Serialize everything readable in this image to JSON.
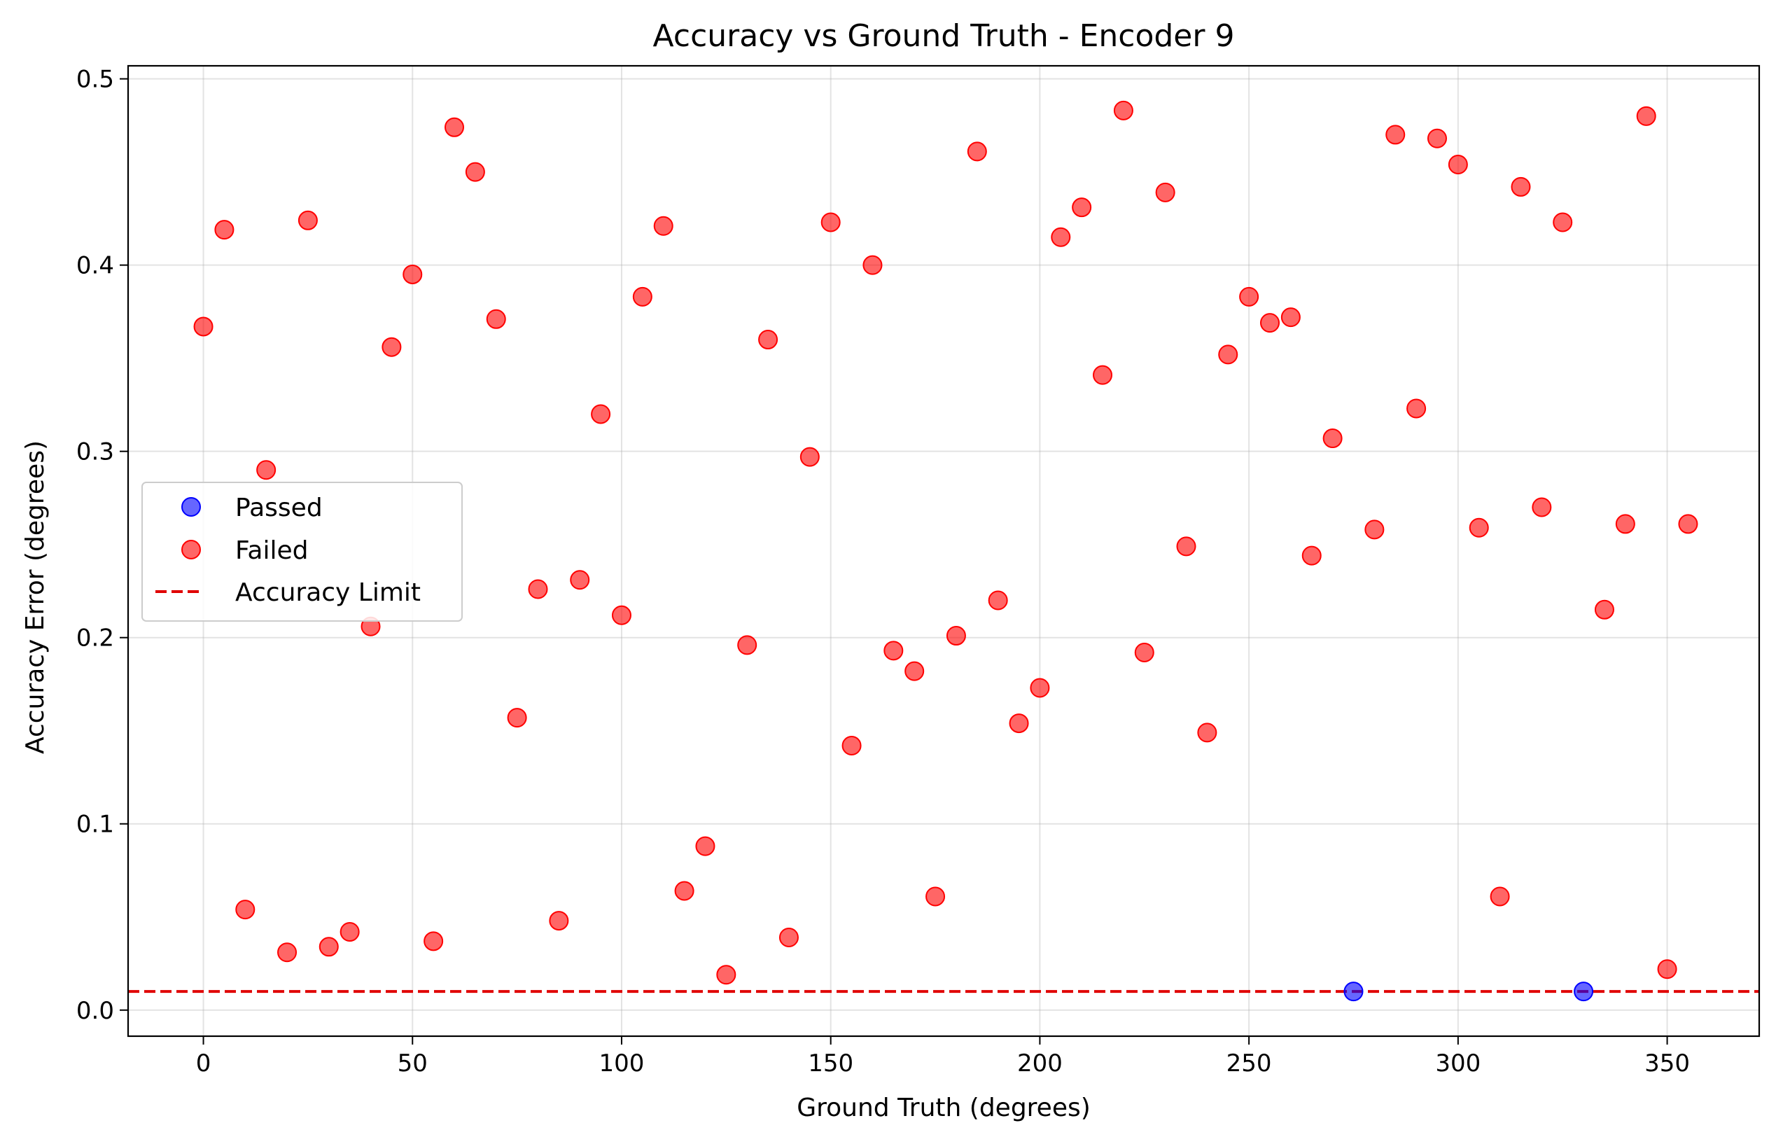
{
  "chart_data": {
    "type": "scatter",
    "title": "Accuracy vs Ground Truth - Encoder 9",
    "xlabel": "Ground Truth (degrees)",
    "ylabel": "Accuracy Error (degrees)",
    "xlim": [
      -18,
      372
    ],
    "ylim": [
      -0.014,
      0.507
    ],
    "xticks": [
      0,
      50,
      100,
      150,
      200,
      250,
      300,
      350
    ],
    "yticks": [
      0.0,
      0.1,
      0.2,
      0.3,
      0.4,
      0.5
    ],
    "xtick_labels": [
      "0",
      "50",
      "100",
      "150",
      "200",
      "250",
      "300",
      "350"
    ],
    "ytick_labels": [
      "0.0",
      "0.1",
      "0.2",
      "0.3",
      "0.4",
      "0.5"
    ],
    "grid": true,
    "legend_position": "center-left",
    "series": [
      {
        "name": "Passed",
        "color": "#0000ff",
        "x": [
          275,
          330
        ],
        "y": [
          0.01,
          0.01
        ]
      },
      {
        "name": "Failed",
        "color": "#ff0000",
        "x": [
          0,
          5,
          10,
          15,
          20,
          25,
          30,
          35,
          40,
          45,
          50,
          55,
          60,
          65,
          70,
          75,
          80,
          85,
          90,
          95,
          100,
          105,
          110,
          115,
          120,
          125,
          130,
          135,
          140,
          145,
          150,
          155,
          160,
          165,
          170,
          175,
          180,
          185,
          190,
          195,
          200,
          205,
          210,
          215,
          220,
          225,
          230,
          235,
          240,
          245,
          250,
          255,
          260,
          265,
          270,
          280,
          285,
          290,
          295,
          300,
          305,
          310,
          315,
          320,
          325,
          335,
          340,
          345,
          350,
          355
        ],
        "y": [
          0.367,
          0.419,
          0.054,
          0.29,
          0.031,
          0.424,
          0.034,
          0.042,
          0.206,
          0.356,
          0.395,
          0.037,
          0.474,
          0.45,
          0.371,
          0.157,
          0.226,
          0.048,
          0.231,
          0.32,
          0.212,
          0.383,
          0.421,
          0.064,
          0.088,
          0.019,
          0.196,
          0.36,
          0.039,
          0.297,
          0.423,
          0.142,
          0.4,
          0.193,
          0.182,
          0.061,
          0.201,
          0.461,
          0.22,
          0.154,
          0.173,
          0.415,
          0.431,
          0.341,
          0.483,
          0.192,
          0.439,
          0.249,
          0.149,
          0.352,
          0.383,
          0.369,
          0.372,
          0.244,
          0.307,
          0.258,
          0.47,
          0.323,
          0.468,
          0.454,
          0.259,
          0.061,
          0.442,
          0.27,
          0.423,
          0.215,
          0.261,
          0.48,
          0.022,
          0.261
        ]
      }
    ],
    "reference_line": {
      "name": "Accuracy Limit",
      "y": 0.01,
      "color": "#e00000",
      "style": "dashed"
    }
  }
}
